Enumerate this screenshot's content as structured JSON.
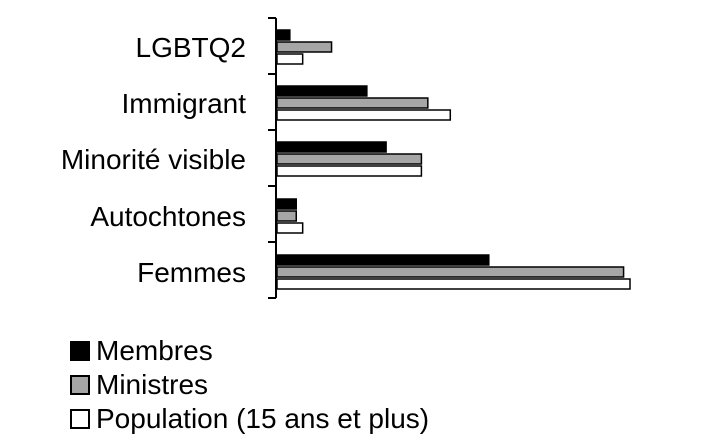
{
  "chart_data": {
    "type": "bar",
    "orientation": "horizontal",
    "categories": [
      "LGBTQ2",
      "Immigrant",
      "Minorité visible",
      "Autochtones",
      "Femmes"
    ],
    "series": [
      {
        "name": "Membres",
        "color": "#000000",
        "values": [
          2,
          14,
          17,
          3,
          33
        ]
      },
      {
        "name": "Ministres",
        "color": "#a6a6a6",
        "values": [
          8.5,
          23.5,
          22.5,
          3,
          54
        ]
      },
      {
        "name": "Population (15 ans et plus)",
        "color": "#ffffff",
        "values": [
          4,
          27,
          22.5,
          4,
          55
        ]
      }
    ],
    "xlim": [
      0,
      55
    ],
    "xticks": [
      "0",
      "55"
    ],
    "grid": false,
    "legend": "bottom-left"
  }
}
